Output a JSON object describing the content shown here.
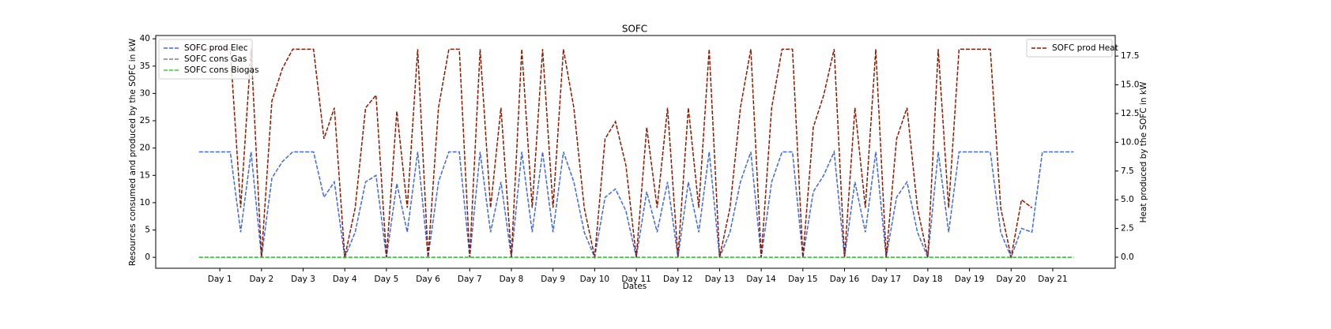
{
  "chart_data": {
    "type": "line",
    "title": "SOFC",
    "xlabel": "Dates",
    "ylabel": "Resources consumed and produced by the SOFC in kW",
    "y2label": "Heat produced by the SOFC in kW",
    "xlim": [
      -0.54,
      22.5
    ],
    "xticks": [
      {
        "value": 1,
        "label": "Day 1"
      },
      {
        "value": 2,
        "label": "Day 2"
      },
      {
        "value": 3,
        "label": "Day 3"
      },
      {
        "value": 4,
        "label": "Day 4"
      },
      {
        "value": 5,
        "label": "Day 5"
      },
      {
        "value": 6,
        "label": "Day 6"
      },
      {
        "value": 7,
        "label": "Day 7"
      },
      {
        "value": 8,
        "label": "Day 8"
      },
      {
        "value": 9,
        "label": "Day 9"
      },
      {
        "value": 10,
        "label": "Day 10"
      },
      {
        "value": 11,
        "label": "Day 11"
      },
      {
        "value": 12,
        "label": "Day 12"
      },
      {
        "value": 13,
        "label": "Day 13"
      },
      {
        "value": 14,
        "label": "Day 14"
      },
      {
        "value": 15,
        "label": "Day 15"
      },
      {
        "value": 16,
        "label": "Day 16"
      },
      {
        "value": 17,
        "label": "Day 17"
      },
      {
        "value": 18,
        "label": "Day 18"
      },
      {
        "value": 19,
        "label": "Day 19"
      },
      {
        "value": 20,
        "label": "Day 20"
      },
      {
        "value": 21,
        "label": "Day 21"
      }
    ],
    "ylim": [
      -2.0,
      40.6
    ],
    "yticks": [
      0,
      5,
      10,
      15,
      20,
      25,
      30,
      35,
      40
    ],
    "y2lim": [
      -0.96,
      19.29
    ],
    "y2ticks": [
      {
        "value": 0,
        "label": "0.0"
      },
      {
        "value": 2.5,
        "label": "2.5"
      },
      {
        "value": 5,
        "label": "5.0"
      },
      {
        "value": 7.5,
        "label": "7.5"
      },
      {
        "value": 10,
        "label": "10.0"
      },
      {
        "value": 12.5,
        "label": "12.5"
      },
      {
        "value": 15,
        "label": "15.0"
      },
      {
        "value": 17.5,
        "label": "17.5"
      }
    ],
    "legend": "upper left",
    "legend2": "upper right",
    "x": [
      0.5,
      0.75,
      1,
      1.25,
      1.5,
      1.75,
      2,
      2.25,
      2.5,
      2.75,
      3,
      3.25,
      3.5,
      3.75,
      4,
      4.25,
      4.5,
      4.75,
      5,
      5.25,
      5.5,
      5.75,
      6,
      6.25,
      6.5,
      6.75,
      7,
      7.25,
      7.5,
      7.75,
      8,
      8.25,
      8.5,
      8.75,
      9,
      9.25,
      9.5,
      9.75,
      10,
      10.25,
      10.5,
      10.75,
      11,
      11.25,
      11.5,
      11.75,
      12,
      12.25,
      12.5,
      12.75,
      13,
      13.25,
      13.5,
      13.75,
      14,
      14.25,
      14.5,
      14.75,
      15,
      15.25,
      15.5,
      15.75,
      16,
      16.25,
      16.5,
      16.75,
      17,
      17.25,
      17.5,
      17.75,
      18,
      18.25,
      18.5,
      18.75,
      19,
      19.25,
      19.5,
      19.75,
      20,
      20.25,
      20.5,
      20.75,
      21,
      21.25,
      21.5
    ],
    "series": [
      {
        "name": "SOFC prod Elec",
        "color": "#4169e1",
        "axis": "y",
        "values": [
          19.3,
          19.3,
          19.3,
          19.3,
          4.6,
          19.3,
          0,
          14.5,
          17.5,
          19.3,
          19.3,
          19.3,
          11,
          13.8,
          0,
          4.6,
          13.8,
          15,
          0,
          13.5,
          4.6,
          19.3,
          0,
          13.8,
          19.3,
          19.3,
          0,
          19.3,
          4.6,
          13.8,
          0,
          19.3,
          4.6,
          19.3,
          4.6,
          19.3,
          13.8,
          4.6,
          0,
          11,
          12.5,
          8.5,
          0,
          12,
          4.6,
          13.8,
          0,
          13.8,
          4.6,
          19.3,
          0,
          4.6,
          13.8,
          19.3,
          0,
          13.8,
          19.3,
          19.3,
          0,
          12,
          15,
          19.3,
          0,
          13.8,
          4.6,
          19.3,
          0,
          11,
          13.8,
          4.6,
          0,
          19.3,
          4.6,
          19.3,
          19.3,
          19.3,
          19.3,
          4.6,
          0,
          5.3,
          4.6,
          19.3,
          19.3,
          19.3,
          19.3
        ]
      },
      {
        "name": "SOFC cons Gas",
        "color": "#808080",
        "axis": "y",
        "values": [
          0,
          0,
          0,
          0,
          0,
          0,
          0,
          0,
          0,
          0,
          0,
          0,
          0,
          0,
          0,
          0,
          0,
          0,
          0,
          0,
          0,
          0,
          0,
          0,
          0,
          0,
          0,
          0,
          0,
          0,
          0,
          0,
          0,
          0,
          0,
          0,
          0,
          0,
          0,
          0,
          0,
          0,
          0,
          0,
          0,
          0,
          0,
          0,
          0,
          0,
          0,
          0,
          0,
          0,
          0,
          0,
          0,
          0,
          0,
          0,
          0,
          0,
          0,
          0,
          0,
          0,
          0,
          0,
          0,
          0,
          0,
          0,
          0,
          0,
          0,
          0,
          0,
          0,
          0,
          0,
          0,
          0,
          0,
          0,
          0
        ]
      },
      {
        "name": "SOFC cons Biogas",
        "color": "#32cd32",
        "axis": "y",
        "values": [
          0,
          0,
          0,
          0,
          0,
          0,
          0,
          0,
          0,
          0,
          0,
          0,
          0,
          0,
          0,
          0,
          0,
          0,
          0,
          0,
          0,
          0,
          0,
          0,
          0,
          0,
          0,
          0,
          0,
          0,
          0,
          0,
          0,
          0,
          0,
          0,
          0,
          0,
          0,
          0,
          0,
          0,
          0,
          0,
          0,
          0,
          0,
          0,
          0,
          0,
          0,
          0,
          0,
          0,
          0,
          0,
          0,
          0,
          0,
          0,
          0,
          0,
          0,
          0,
          0,
          0,
          0,
          0,
          0,
          0,
          0,
          0,
          0,
          0,
          0,
          0,
          0,
          0,
          0,
          0,
          0,
          0,
          0,
          0,
          0
        ]
      },
      {
        "name": "SOFC prod Heat",
        "color": "#8b1a00",
        "axis": "y2",
        "values": [
          18.1,
          18.1,
          18.1,
          18.1,
          4.3,
          18.1,
          0,
          13.6,
          16.4,
          18.1,
          18.1,
          18.1,
          10.3,
          13.0,
          0,
          4.3,
          13.0,
          14.1,
          0,
          12.7,
          4.3,
          18.1,
          0,
          13.0,
          18.1,
          18.1,
          0,
          18.1,
          4.3,
          13.0,
          0,
          18.1,
          4.3,
          18.1,
          4.3,
          18.1,
          13.0,
          4.3,
          0,
          10.3,
          11.8,
          8.0,
          0,
          11.3,
          4.3,
          13.0,
          0,
          13.0,
          4.3,
          18.1,
          0,
          4.3,
          13.0,
          18.1,
          0,
          13.0,
          18.1,
          18.1,
          0,
          11.3,
          14.1,
          18.1,
          0,
          13.0,
          4.3,
          18.1,
          0,
          10.3,
          13.0,
          4.3,
          0,
          18.1,
          4.3,
          18.1,
          18.1,
          18.1,
          18.1,
          4.3,
          0,
          5.0,
          4.3,
          null,
          null,
          null,
          null
        ]
      }
    ]
  }
}
